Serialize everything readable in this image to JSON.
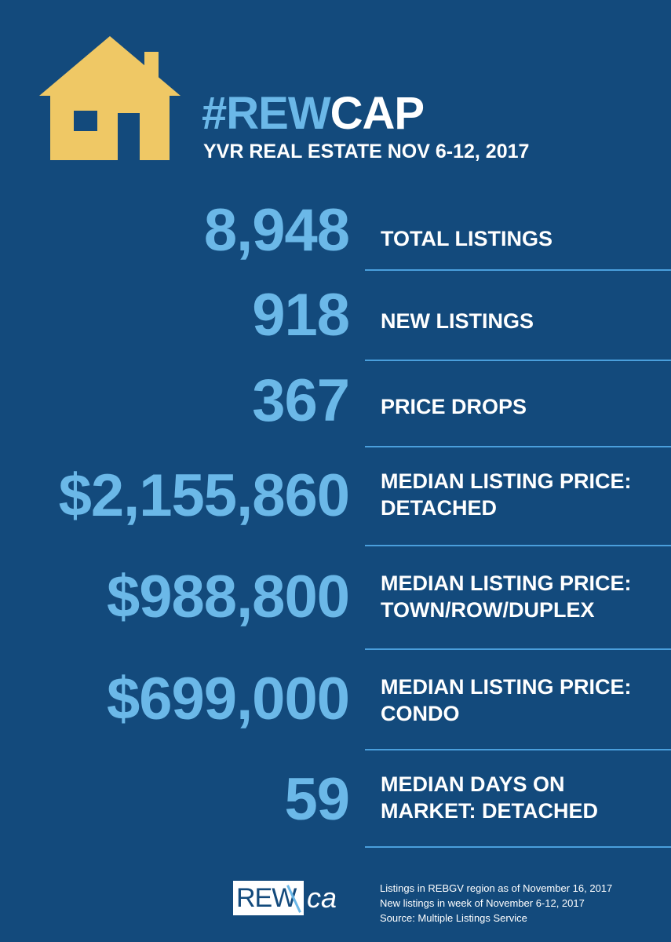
{
  "header": {
    "title_hash": "#REW",
    "title_cap": "CAP",
    "subtitle": "YVR REAL ESTATE NOV 6-12, 2017"
  },
  "stats": [
    {
      "value": "8,948",
      "label_line1": "TOTAL LISTINGS",
      "label_line2": ""
    },
    {
      "value": "918",
      "label_line1": "NEW LISTINGS",
      "label_line2": ""
    },
    {
      "value": "367",
      "label_line1": "PRICE DROPS",
      "label_line2": ""
    },
    {
      "value": "$2,155,860",
      "label_line1": "MEDIAN LISTING PRICE:",
      "label_line2": "DETACHED"
    },
    {
      "value": "$988,800",
      "label_line1": "MEDIAN LISTING PRICE:",
      "label_line2": "TOWN/ROW/DUPLEX"
    },
    {
      "value": "$699,000",
      "label_line1": "MEDIAN LISTING PRICE:",
      "label_line2": "CONDO"
    },
    {
      "value": "59",
      "label_line1": "MEDIAN DAYS ON",
      "label_line2": "MARKET: DETACHED"
    }
  ],
  "logo": {
    "left": "REW",
    "right": "ca"
  },
  "footnotes": [
    "Listings in REBGV region as of November 16, 2017",
    "New listings in week of November 6-12, 2017",
    "Source: Multiple Listings Service"
  ],
  "colors": {
    "background": "#134a7c",
    "accent": "#6bb8e8",
    "house": "#efc865",
    "divider": "#4a9fdc"
  },
  "icons": {
    "house": "house-icon"
  }
}
